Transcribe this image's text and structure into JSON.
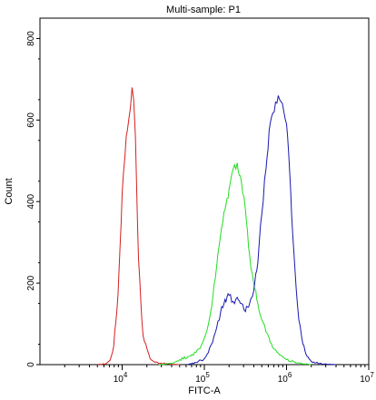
{
  "chart_data": {
    "type": "line",
    "title": "Multi-sample: P1",
    "xlabel": "FITC-A",
    "ylabel": "Count",
    "x_scale": "log",
    "xlim": [
      1000,
      10000000
    ],
    "ylim": [
      0,
      850
    ],
    "x_ticks": [
      {
        "value": 10000,
        "base": "10",
        "exp": "4"
      },
      {
        "value": 100000,
        "base": "10",
        "exp": "5"
      },
      {
        "value": 1000000,
        "base": "10",
        "exp": "6"
      },
      {
        "value": 10000000,
        "base": "10",
        "exp": "7"
      }
    ],
    "y_ticks": [
      {
        "value": 0,
        "label": "0"
      },
      {
        "value": 200,
        "label": "200"
      },
      {
        "value": 400,
        "label": "400"
      },
      {
        "value": 600,
        "label": "600"
      },
      {
        "value": 800,
        "label": "800"
      }
    ],
    "grid": false,
    "legend": "none",
    "series": [
      {
        "color": "#d32020",
        "x": [
          5000,
          6300,
          7100,
          7900,
          8900,
          10000,
          11200,
          12000,
          12600,
          13200,
          13800,
          14500,
          15000,
          15800,
          17000,
          18000,
          18800,
          20000,
          21200,
          22400,
          25100,
          31600,
          39800,
          50100
        ],
        "y": [
          0,
          2,
          10,
          45,
          170,
          420,
          560,
          600,
          630,
          680,
          650,
          560,
          440,
          260,
          140,
          70,
          55,
          40,
          25,
          12,
          6,
          3,
          1,
          0
        ]
      },
      {
        "color": "#22dd22",
        "x": [
          28200,
          39800,
          50100,
          63100,
          70800,
          79400,
          89100,
          100000,
          112000,
          126000,
          141000,
          158000,
          178000,
          200000,
          224000,
          251000,
          282000,
          316000,
          355000,
          398000,
          447000,
          501000,
          562000,
          631000,
          708000,
          794000,
          891000,
          1000000,
          1260000,
          1580000,
          2000000
        ],
        "y": [
          0,
          3,
          12,
          20,
          25,
          30,
          40,
          65,
          100,
          160,
          240,
          320,
          380,
          430,
          480,
          495,
          450,
          380,
          270,
          200,
          150,
          110,
          80,
          55,
          38,
          28,
          20,
          12,
          6,
          2,
          0
        ]
      },
      {
        "color": "#1818b0",
        "x": [
          63100,
          79400,
          100000,
          112000,
          126000,
          141000,
          158000,
          178000,
          200000,
          224000,
          251000,
          282000,
          316000,
          355000,
          398000,
          447000,
          501000,
          562000,
          631000,
          708000,
          794000,
          891000,
          1000000,
          1060000,
          1120000,
          1190000,
          1260000,
          1410000,
          1580000,
          1780000,
          2000000,
          2510000,
          3160000,
          3980000
        ],
        "y": [
          0,
          5,
          15,
          30,
          55,
          90,
          130,
          160,
          170,
          155,
          165,
          150,
          130,
          150,
          180,
          250,
          370,
          480,
          590,
          620,
          660,
          640,
          590,
          520,
          430,
          320,
          240,
          110,
          50,
          20,
          8,
          3,
          1,
          0
        ]
      }
    ]
  }
}
